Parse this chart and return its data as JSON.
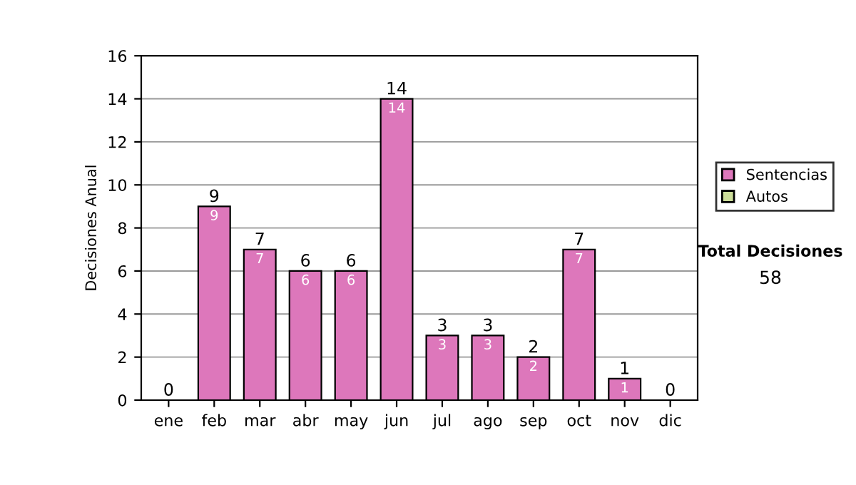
{
  "chart_data": {
    "type": "bar",
    "ylabel": "Decisiones Anual",
    "categories": [
      "ene",
      "feb",
      "mar",
      "abr",
      "may",
      "jun",
      "jul",
      "ago",
      "sep",
      "oct",
      "nov",
      "dic"
    ],
    "series": [
      {
        "name": "Sentencias",
        "color": "#dd77bb",
        "values": [
          0,
          9,
          7,
          6,
          6,
          14,
          3,
          3,
          2,
          7,
          1,
          0
        ],
        "value_labels": [
          null,
          "9",
          "7",
          "6",
          "6",
          "14",
          "3",
          "3",
          "2",
          "7",
          "1",
          null
        ]
      },
      {
        "name": "Autos",
        "color": "#ccdd99",
        "values": [
          0,
          0,
          0,
          0,
          0,
          0,
          0,
          0,
          0,
          0,
          0,
          0
        ]
      }
    ],
    "stacked": true,
    "totals": [
      "0",
      "9",
      "7",
      "6",
      "6",
      "14",
      "3",
      "3",
      "2",
      "7",
      "1",
      "0"
    ],
    "ylim": [
      0,
      16
    ],
    "yticks": [
      0,
      2,
      4,
      6,
      8,
      10,
      12,
      14,
      16
    ],
    "grid": "y",
    "legend": "right",
    "annotations": [
      "Total Decisiones",
      "58"
    ]
  }
}
